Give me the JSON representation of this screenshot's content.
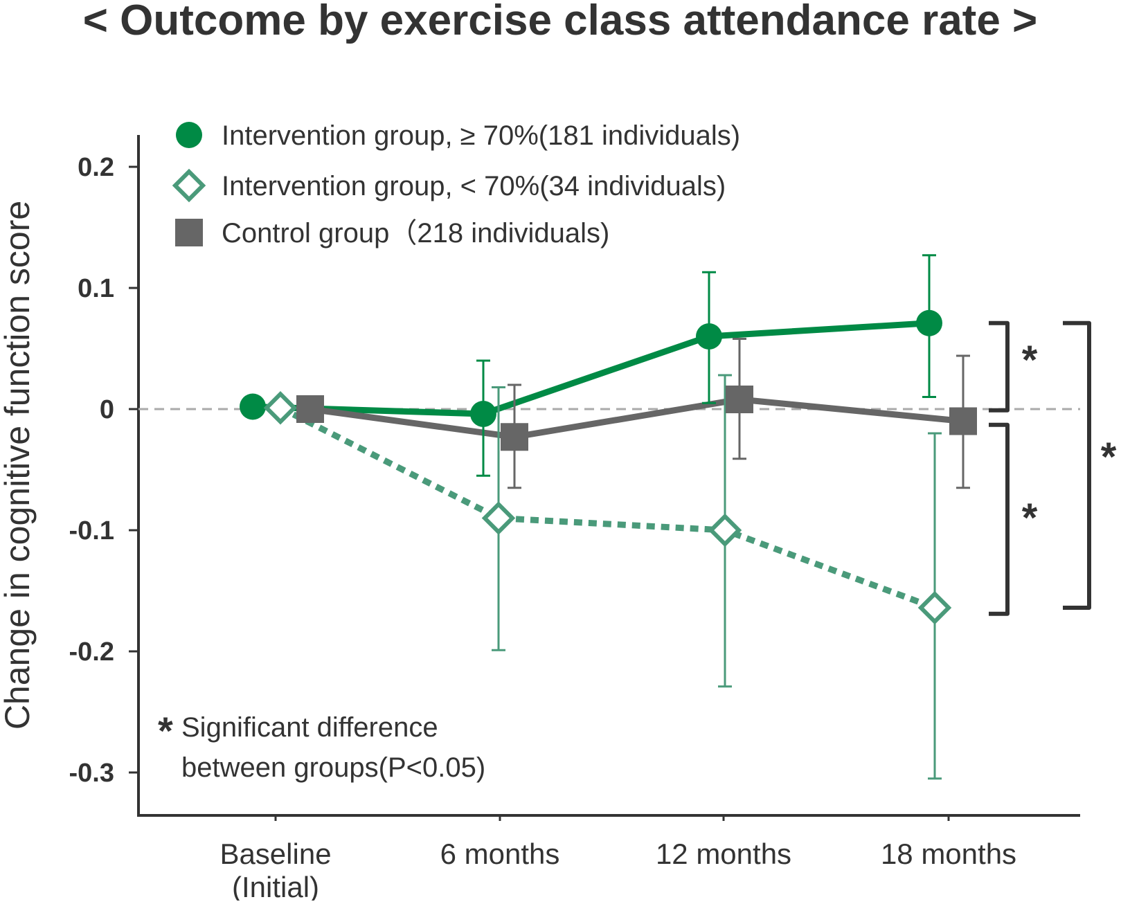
{
  "colors": {
    "intervention_high": "#008a45",
    "intervention_low": "#4a9a7a",
    "control": "#666666",
    "axis": "#333333",
    "zero_line": "#aaaaaa"
  },
  "chart_data": {
    "type": "line",
    "title": "< Outcome by exercise class attendance rate >",
    "ylabel": "Change in cognitive function score",
    "xlabel": "",
    "ylim": [
      -0.33,
      0.2
    ],
    "yticks": [
      {
        "value": 0.2,
        "label": "0.2"
      },
      {
        "value": 0.1,
        "label": "0.1"
      },
      {
        "value": 0,
        "label": "0"
      },
      {
        "value": -0.1,
        "label": "-0.1"
      },
      {
        "value": -0.2,
        "label": "-0.2"
      },
      {
        "value": -0.3,
        "label": "-0.3"
      }
    ],
    "categories": [
      {
        "line1": "Baseline",
        "line2": "(Initial)"
      },
      {
        "line1": "6 months",
        "line2": ""
      },
      {
        "line1": "12 months",
        "line2": ""
      },
      {
        "line1": "18 months",
        "line2": ""
      }
    ],
    "grid": false,
    "zero_reference_line": "dashed",
    "legend_position": "top-left",
    "series": [
      {
        "name": "Intervention group, ≥ 70%(181 individuals)",
        "marker": "circle",
        "line_style": "solid",
        "color": "#008a45",
        "values": [
          0.002,
          -0.004,
          0.06,
          0.071
        ],
        "error_low": [
          null,
          -0.055,
          0.005,
          0.01
        ],
        "error_high": [
          null,
          0.04,
          0.113,
          0.127
        ]
      },
      {
        "name": "Intervention group, < 70%(34 individuals)",
        "marker": "diamond-open",
        "line_style": "dotted",
        "color": "#4a9a7a",
        "values": [
          0.001,
          -0.09,
          -0.1,
          -0.164
        ],
        "error_low": [
          null,
          -0.199,
          -0.229,
          -0.305
        ],
        "error_high": [
          null,
          0.018,
          0.028,
          -0.02
        ]
      },
      {
        "name": "Control group（218 individuals)",
        "marker": "square",
        "line_style": "solid",
        "color": "#666666",
        "values": [
          0.0,
          -0.023,
          0.008,
          -0.01
        ],
        "error_low": [
          null,
          -0.065,
          -0.041,
          -0.065
        ],
        "error_high": [
          null,
          0.02,
          0.058,
          0.044
        ]
      }
    ],
    "significance": [
      {
        "symbol": "*",
        "between": "Intervention ≥ 70% vs Control"
      },
      {
        "symbol": "*",
        "between": "Control vs Intervention < 70%"
      },
      {
        "symbol": "*",
        "between": "Intervention ≥ 70% vs Intervention < 70%"
      }
    ],
    "note": {
      "symbol": "*",
      "line1": "Significant difference",
      "line2": "between groups(P<0.05)"
    }
  }
}
